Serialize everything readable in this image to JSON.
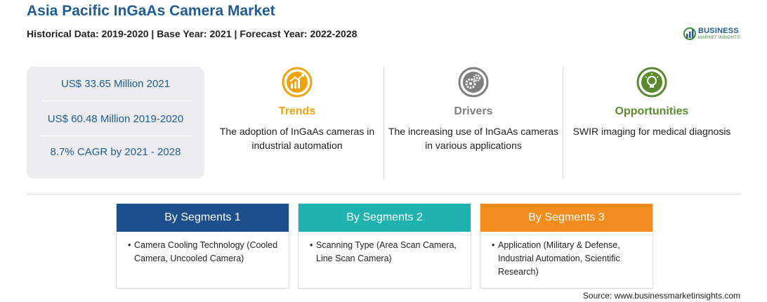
{
  "header": {
    "title": "Asia Pacific InGaAs Camera Market",
    "subtitle": "Historical Data: 2019-2020 | Base Year: 2021 | Forecast Year: 2022-2028"
  },
  "logo": {
    "word": "BUSINESS",
    "sub": "MARKET INSIGHTS",
    "icon": "globe-icon"
  },
  "stats": [
    "US$ 33.65 Million 2021",
    "US$ 60.48 Million 2019-2020",
    "8.7% CAGR by 2021 - 2028"
  ],
  "columns": {
    "trends": {
      "heading": "Trends",
      "text": "The adoption of InGaAs cameras in industrial automation",
      "color": "#f0a30a",
      "icon": "growth-chart-icon"
    },
    "drivers": {
      "heading": "Drivers",
      "text": "The increasing use of InGaAs cameras in various applications",
      "color": "#7f7f7f",
      "icon": "gears-icon"
    },
    "opportunities": {
      "heading": "Opportunities",
      "text": "SWIR imaging for medical diagnosis",
      "color": "#5a8a2e",
      "icon": "lightbulb-icon"
    }
  },
  "segments": [
    {
      "title": "By Segments 1",
      "color": "#1c4f8c",
      "item": "Camera Cooling Technology (Cooled Camera, Uncooled Camera)"
    },
    {
      "title": "By Segments 2",
      "color": "#1fb3b0",
      "item": "Scanning Type (Area Scan Camera, Line Scan Camera)"
    },
    {
      "title": "By Segments 3",
      "color": "#f28c1e",
      "item": "Application (Military & Defense, Industrial Automation, Scientific Research)"
    }
  ],
  "source": "Source: www.businessmarketinsights.com"
}
